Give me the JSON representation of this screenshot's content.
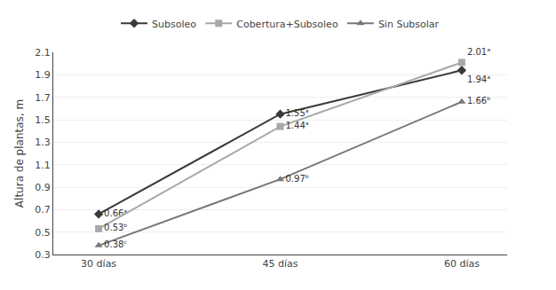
{
  "chart_data": {
    "type": "line",
    "categories": [
      "30 días",
      "45 días",
      "60 días"
    ],
    "series": [
      {
        "name": "Subsoleo",
        "color": "#3a3a3a",
        "marker": "diamond",
        "values": [
          0.66,
          1.55,
          1.94
        ],
        "value_labels": [
          "0.66ᵃ",
          "1.55ᵃ",
          "1.94ᵃ"
        ]
      },
      {
        "name": "Cobertura+Subsoleo",
        "color": "#a8a8a8",
        "marker": "square",
        "values": [
          0.53,
          1.44,
          2.01
        ],
        "value_labels": [
          "0.53ᵇ",
          "1.44ᵃ",
          "2.01ᵃ"
        ]
      },
      {
        "name": "Sin Subsolar",
        "color": "#787878",
        "marker": "triangle-up",
        "values": [
          0.38,
          0.97,
          1.66
        ],
        "value_labels": [
          "0.38ᶜ",
          "0.97ᵇ",
          "1.66ᵇ"
        ]
      }
    ],
    "ylabel": "Altura de plantas, m",
    "ylim": [
      0.3,
      2.1
    ],
    "yticks": [
      0.3,
      0.5,
      0.7,
      0.9,
      1.1,
      1.3,
      1.5,
      1.7,
      1.9,
      2.1
    ],
    "grid": true,
    "legend": "top",
    "data_labels": true
  }
}
